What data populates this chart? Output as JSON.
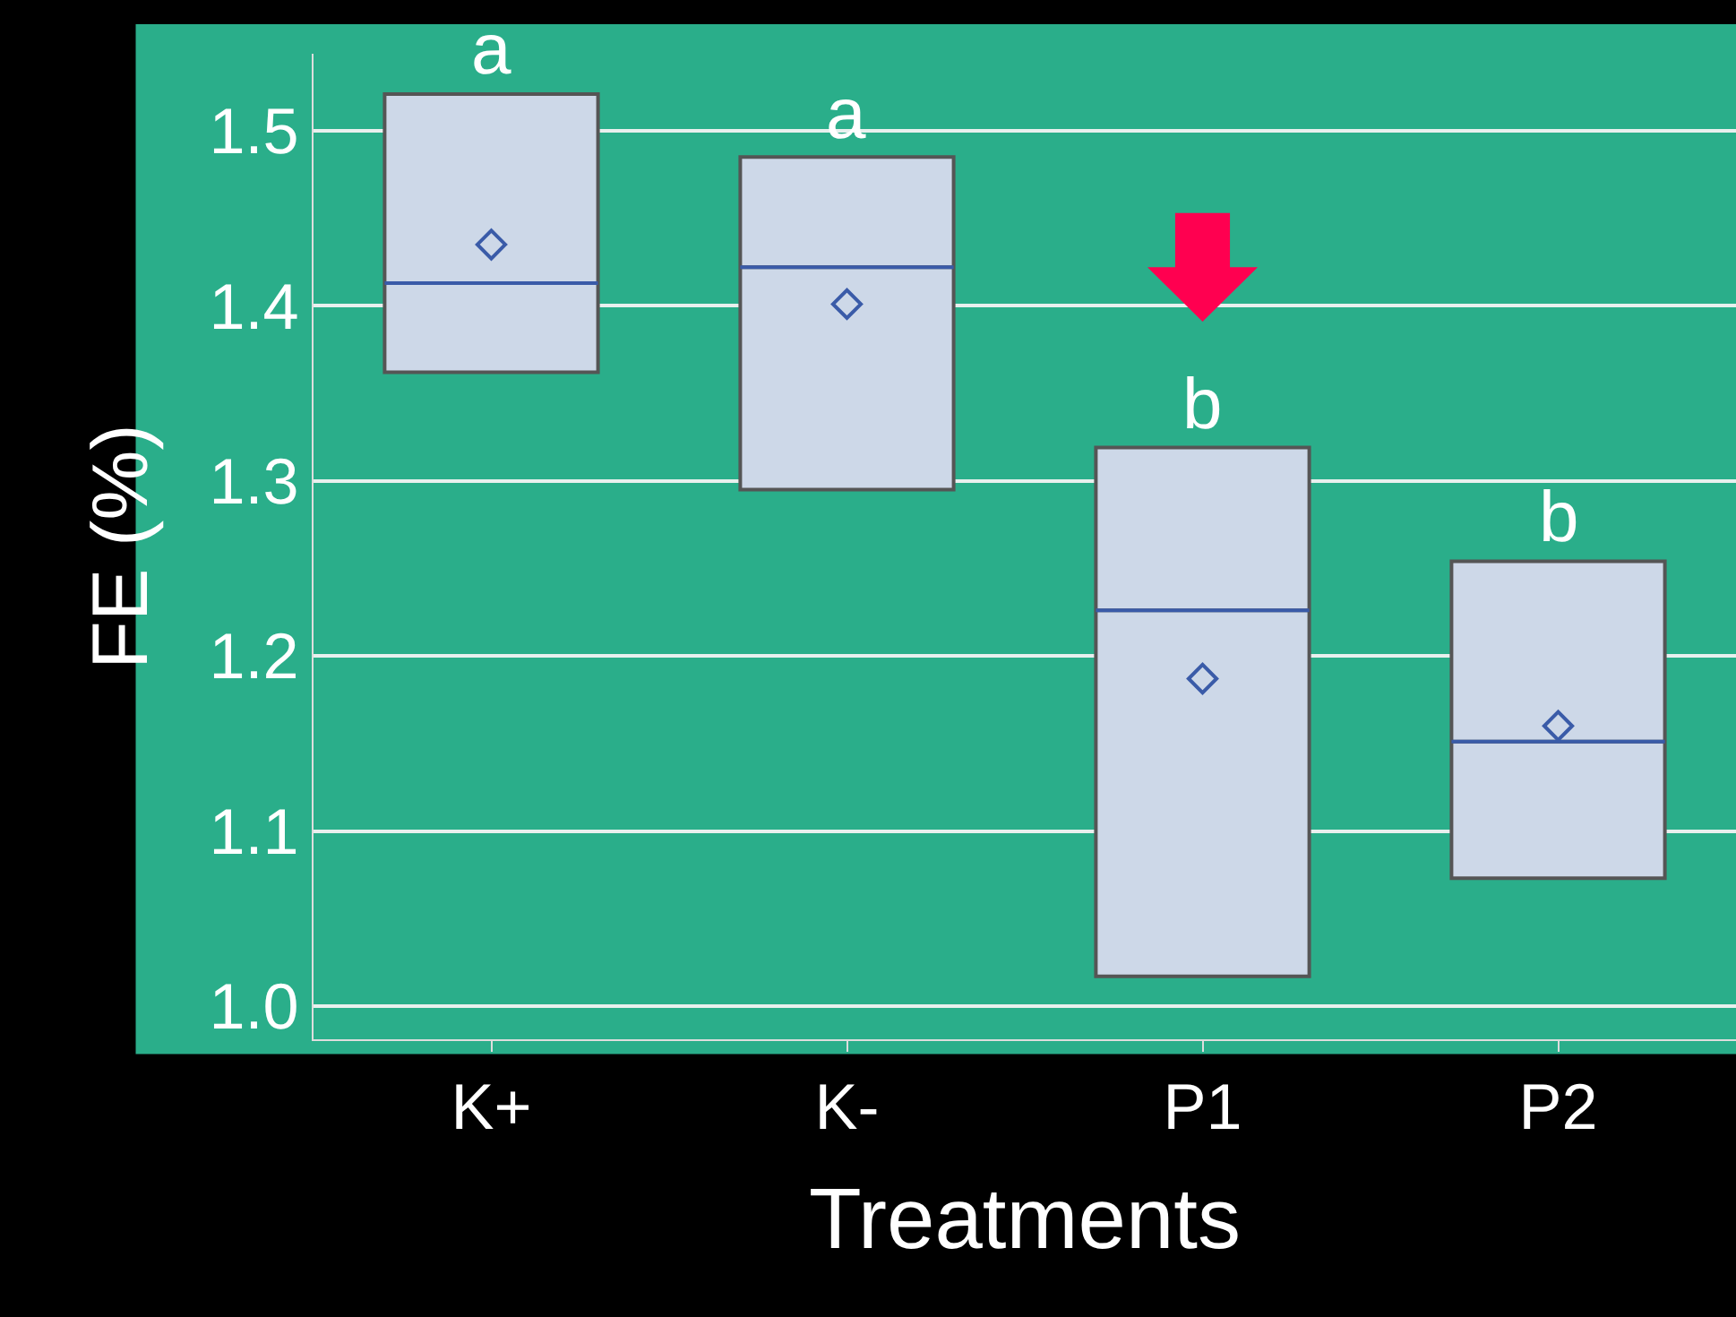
{
  "chart_data": {
    "type": "box",
    "xlabel": "Treatments",
    "ylabel": "FE (%)",
    "categories": [
      "K+",
      "K-",
      "P1",
      "P2"
    ],
    "color": "#cdd8e8",
    "boxes": [
      {
        "low": 1.362,
        "q1": 1.362,
        "median": 1.413,
        "q3": 1.521,
        "high": 1.521,
        "mean": 1.435
      },
      {
        "low": 1.295,
        "q1": 1.295,
        "median": 1.422,
        "q3": 1.485,
        "high": 1.485,
        "mean": 1.401
      },
      {
        "low": 1.017,
        "q1": 1.017,
        "median": 1.226,
        "q3": 1.319,
        "high": 1.319,
        "mean": 1.187
      },
      {
        "low": 1.073,
        "q1": 1.073,
        "median": 1.151,
        "q3": 1.254,
        "high": 1.254,
        "mean": 1.16
      }
    ],
    "ylim": [
      0.981,
      1.544
    ],
    "yticks": [
      {
        "value": 1.0,
        "label": "1.0"
      },
      {
        "value": 1.1,
        "label": "1.1"
      },
      {
        "value": 1.2,
        "label": "1.2"
      },
      {
        "value": 1.3,
        "label": "1.3"
      },
      {
        "value": 1.4,
        "label": "1.4"
      },
      {
        "value": 1.5,
        "label": "1.5"
      }
    ],
    "grid": "y",
    "marker": "diamond",
    "annotations": [
      {
        "text": "a",
        "x": "K+",
        "y": 1.521
      },
      {
        "text": "a",
        "x": "K-",
        "y": 1.485
      },
      {
        "text": "b",
        "x": "P1",
        "y": 1.319
      },
      {
        "text": "b",
        "x": "P2",
        "y": 1.254
      }
    ]
  }
}
